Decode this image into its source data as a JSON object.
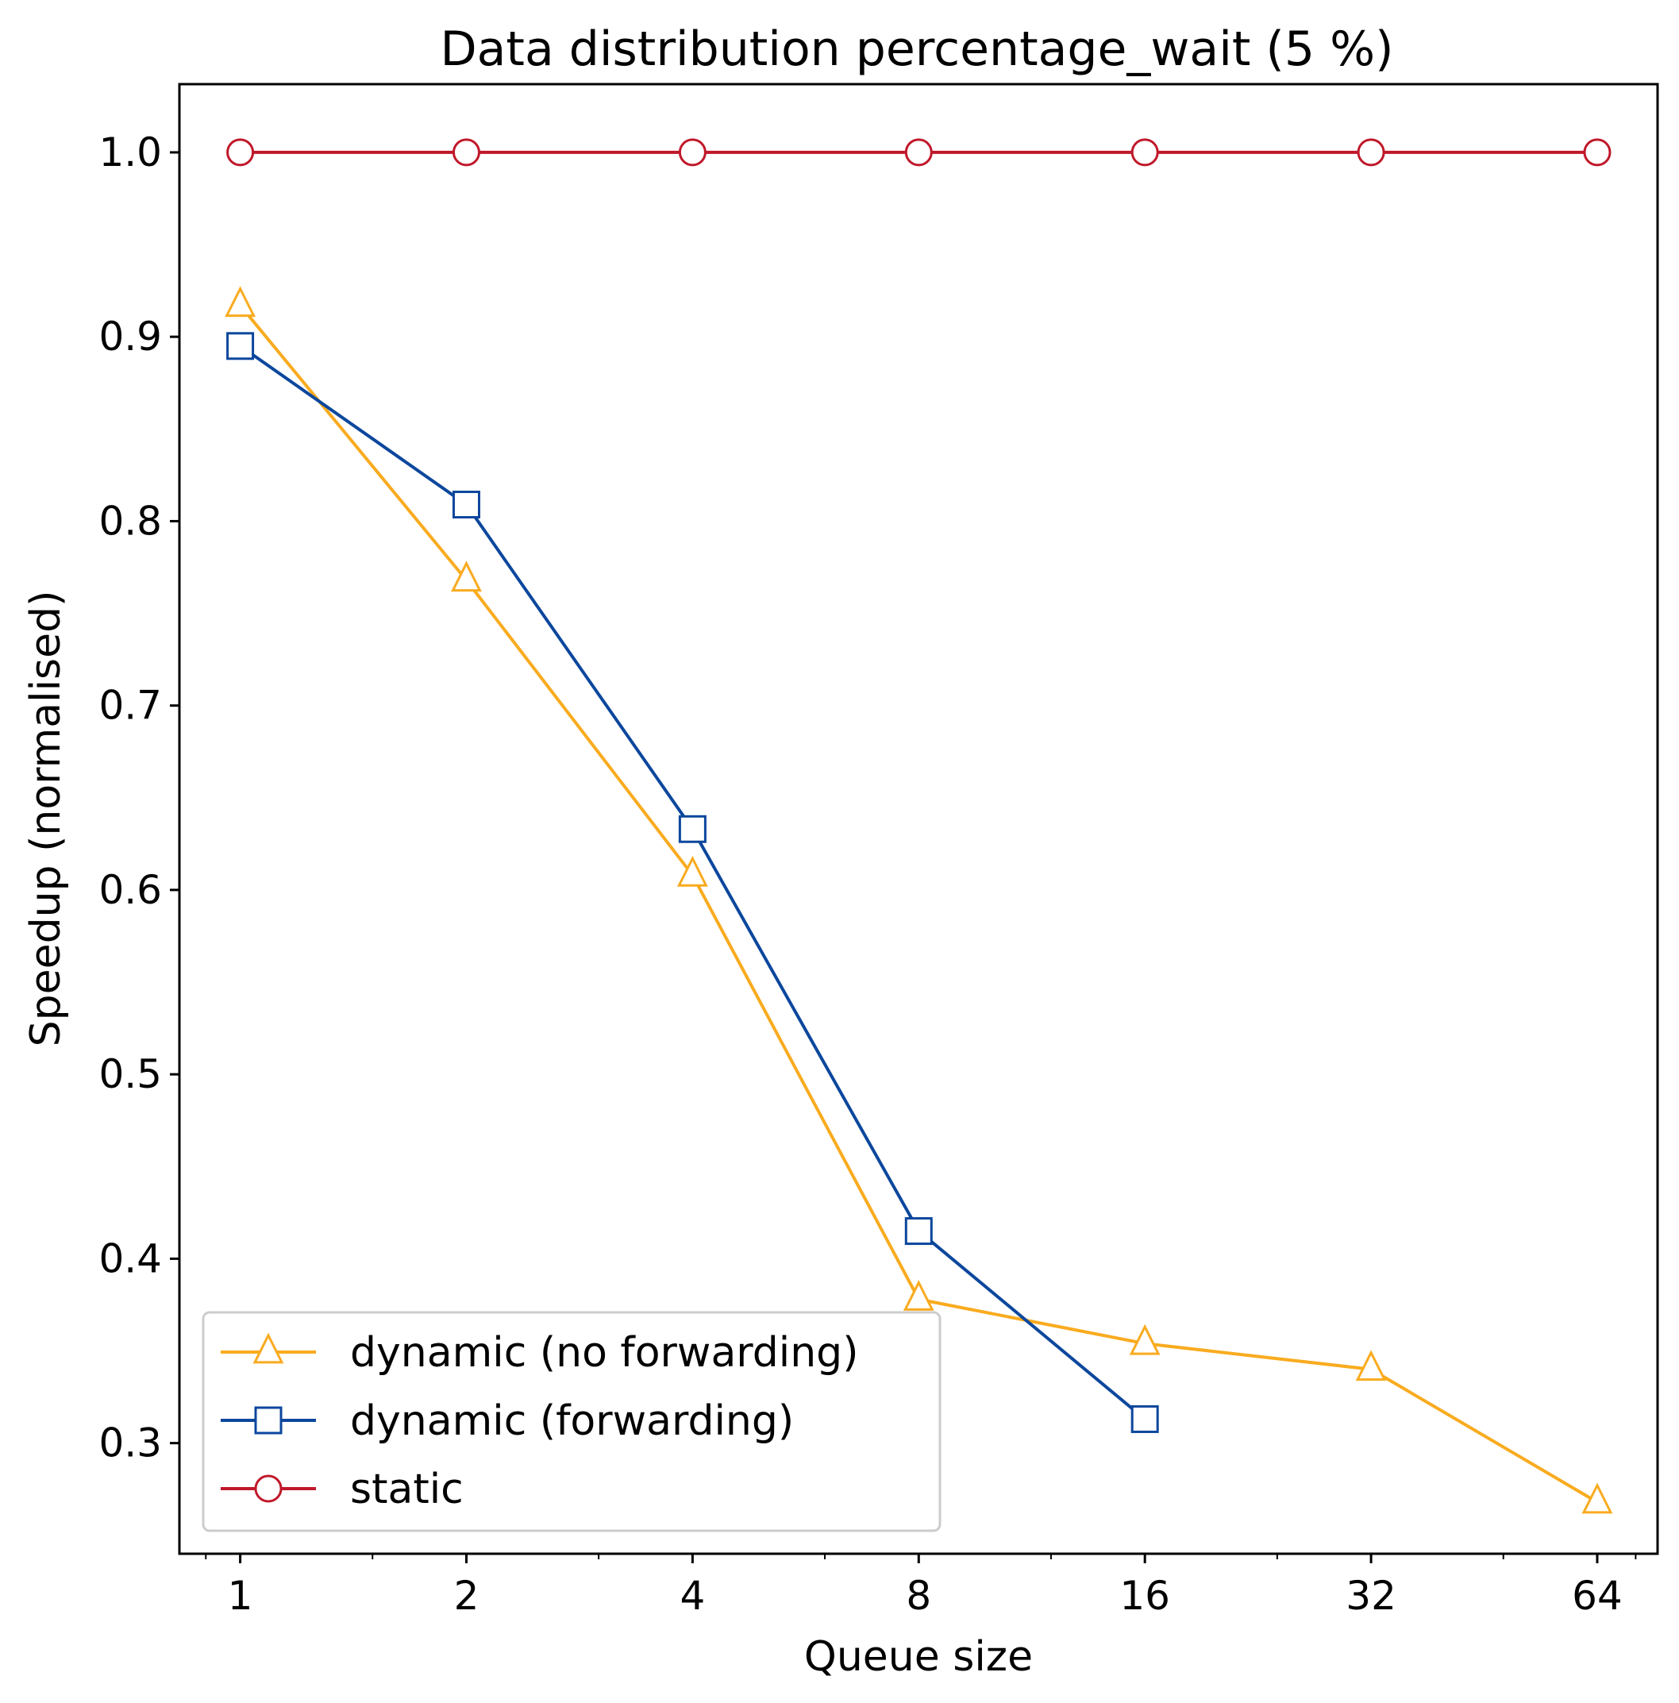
{
  "chart_data": {
    "type": "line",
    "title": "Data distribution percentage_wait (5 %)",
    "xlabel": "Queue size",
    "ylabel": "Speedup (normalised)",
    "x_scale": "log2",
    "x": [
      1,
      2,
      4,
      8,
      16,
      32,
      64
    ],
    "x_tick_labels": [
      "1",
      "2",
      "4",
      "8",
      "16",
      "32",
      "64"
    ],
    "y_ticks": [
      0.3,
      0.4,
      0.5,
      0.6,
      0.7,
      0.8,
      0.9,
      1.0
    ],
    "y_tick_labels": [
      "0.3",
      "0.4",
      "0.5",
      "0.6",
      "0.7",
      "0.8",
      "0.9",
      "1.0"
    ],
    "ylim": [
      0.24,
      1.037
    ],
    "xlim": [
      0.83,
      77
    ],
    "grid": false,
    "legend_position": "lower-left",
    "series": [
      {
        "name": "dynamic (no forwarding)",
        "color": "#F9AB1F",
        "marker": "triangle",
        "x": [
          1,
          2,
          4,
          8,
          16,
          32,
          64
        ],
        "values": [
          0.917,
          0.768,
          0.608,
          0.378,
          0.354,
          0.34,
          0.268
        ]
      },
      {
        "name": "dynamic (forwarding)",
        "color": "#0C479D",
        "marker": "square",
        "x": [
          1,
          2,
          4,
          8,
          16
        ],
        "values": [
          0.895,
          0.809,
          0.633,
          0.415,
          0.313
        ]
      },
      {
        "name": "static",
        "color": "#C0182A",
        "marker": "circle",
        "x": [
          1,
          2,
          4,
          8,
          16,
          32,
          64
        ],
        "values": [
          1.0,
          1.0,
          1.0,
          1.0,
          1.0,
          1.0,
          1.0
        ]
      }
    ]
  }
}
